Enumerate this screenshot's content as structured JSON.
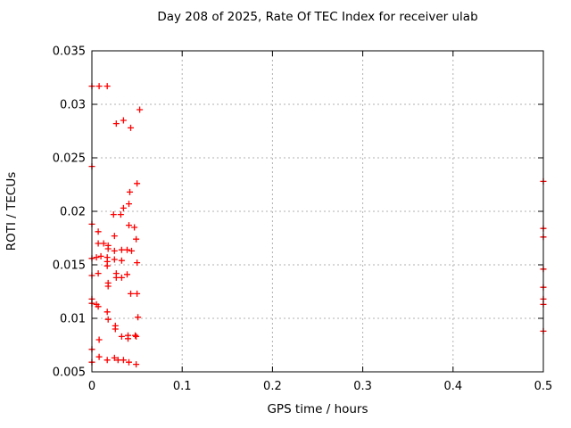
{
  "page": {
    "background": "#ffffff"
  },
  "chart_data": {
    "type": "scatter",
    "title": "Day 208 of 2025, Rate Of TEC Index for receiver ulab",
    "xlabel": "GPS time / hours",
    "ylabel": "ROTI / TECUs",
    "xlim": [
      0,
      0.5
    ],
    "ylim": [
      0.005,
      0.035
    ],
    "x_tick_values": [
      0,
      0.1,
      0.2,
      0.3,
      0.4,
      0.5
    ],
    "x_tick_labels": [
      "0",
      "0.1",
      "0.2",
      "0.3",
      "0.4",
      "0.5"
    ],
    "y_tick_values": [
      0.005,
      0.01,
      0.015,
      0.02,
      0.025,
      0.03,
      0.035
    ],
    "y_tick_labels": [
      "0.005",
      "0.01",
      "0.015",
      "0.02",
      "0.025",
      "0.03",
      "0.035"
    ],
    "grid": true,
    "grid_style": "dashed",
    "grid_color": "#b0b0b0",
    "axis_color": "#000000",
    "legend_position": "none",
    "marker_shape": "plus",
    "marker_color": "#ff0000",
    "marker_size_px": 7,
    "series": [
      {
        "name": "ROTI",
        "points": [
          [
            0.0,
            0.0317
          ],
          [
            0.008,
            0.0317
          ],
          [
            0.017,
            0.0317
          ],
          [
            0.053,
            0.0295
          ],
          [
            0.035,
            0.0285
          ],
          [
            0.027,
            0.0282
          ],
          [
            0.043,
            0.0278
          ],
          [
            0.0,
            0.0242
          ],
          [
            0.05,
            0.0226
          ],
          [
            0.042,
            0.0218
          ],
          [
            0.041,
            0.0207
          ],
          [
            0.035,
            0.0203
          ],
          [
            0.024,
            0.0197
          ],
          [
            0.032,
            0.0197
          ],
          [
            0.0,
            0.0188
          ],
          [
            0.041,
            0.0187
          ],
          [
            0.047,
            0.0185
          ],
          [
            0.007,
            0.0181
          ],
          [
            0.025,
            0.0177
          ],
          [
            0.049,
            0.0174
          ],
          [
            0.007,
            0.017
          ],
          [
            0.013,
            0.017
          ],
          [
            0.018,
            0.0168
          ],
          [
            0.018,
            0.0165
          ],
          [
            0.033,
            0.0164
          ],
          [
            0.039,
            0.0164
          ],
          [
            0.025,
            0.0163
          ],
          [
            0.044,
            0.0163
          ],
          [
            0.005,
            0.0157
          ],
          [
            0.01,
            0.0158
          ],
          [
            0.0,
            0.0156
          ],
          [
            0.017,
            0.0157
          ],
          [
            0.017,
            0.0153
          ],
          [
            0.025,
            0.0155
          ],
          [
            0.033,
            0.0154
          ],
          [
            0.05,
            0.0152
          ],
          [
            0.017,
            0.0149
          ],
          [
            0.007,
            0.0142
          ],
          [
            0.027,
            0.0142
          ],
          [
            0.039,
            0.0141
          ],
          [
            0.0,
            0.014
          ],
          [
            0.027,
            0.0138
          ],
          [
            0.033,
            0.0138
          ],
          [
            0.018,
            0.0133
          ],
          [
            0.018,
            0.013
          ],
          [
            0.043,
            0.0123
          ],
          [
            0.05,
            0.0123
          ],
          [
            0.0,
            0.0118
          ],
          [
            0.0,
            0.0114
          ],
          [
            0.005,
            0.0113
          ],
          [
            0.007,
            0.0111
          ],
          [
            0.017,
            0.0106
          ],
          [
            0.051,
            0.0101
          ],
          [
            0.018,
            0.0099
          ],
          [
            0.026,
            0.0093
          ],
          [
            0.026,
            0.009
          ],
          [
            0.033,
            0.0083
          ],
          [
            0.04,
            0.0084
          ],
          [
            0.04,
            0.0081
          ],
          [
            0.048,
            0.0084
          ],
          [
            0.049,
            0.0083
          ],
          [
            0.008,
            0.008
          ],
          [
            0.0,
            0.0071
          ],
          [
            0.008,
            0.0064
          ],
          [
            0.0,
            0.0059
          ],
          [
            0.017,
            0.0061
          ],
          [
            0.025,
            0.0063
          ],
          [
            0.029,
            0.0061
          ],
          [
            0.035,
            0.0061
          ],
          [
            0.041,
            0.0059
          ],
          [
            0.049,
            0.0057
          ],
          [
            0.5,
            0.0228
          ],
          [
            0.5,
            0.0184
          ],
          [
            0.5,
            0.0176
          ],
          [
            0.5,
            0.0146
          ],
          [
            0.5,
            0.0129
          ],
          [
            0.5,
            0.0118
          ],
          [
            0.5,
            0.0113
          ],
          [
            0.5,
            0.0088
          ]
        ]
      }
    ]
  }
}
